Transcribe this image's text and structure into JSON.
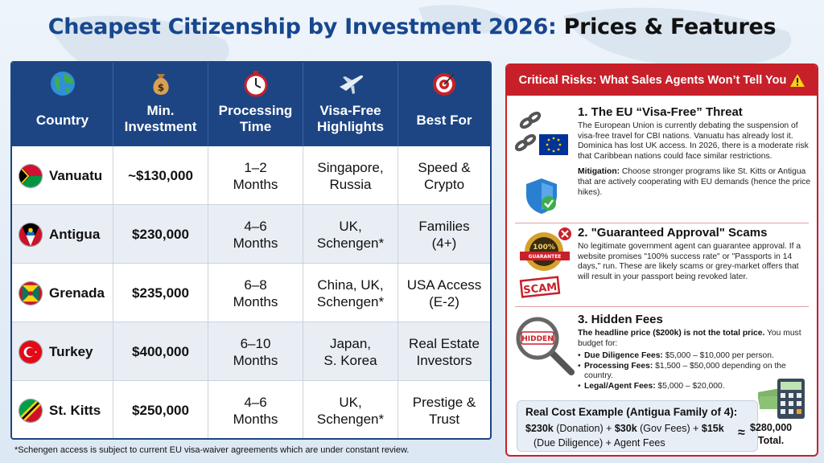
{
  "title": {
    "part1": "Cheapest Citizenship by Investment 2026:",
    "part2": "Prices & Features"
  },
  "table": {
    "headers": [
      {
        "label": "Country",
        "icon": "globe-icon"
      },
      {
        "label": "Min.\nInvestment",
        "icon": "money-bag-icon"
      },
      {
        "label": "Processing\nTime",
        "icon": "stopwatch-icon"
      },
      {
        "label": "Visa-Free\nHighlights",
        "icon": "airplane-icon"
      },
      {
        "label": "Best For",
        "icon": "target-icon"
      }
    ],
    "rows": [
      {
        "country": "Vanuatu",
        "flag": "vanuatu-flag",
        "investment": "~$130,000",
        "time": "1–2\nMonths",
        "visa": "Singapore,\nRussia",
        "best": "Speed &\nCrypto"
      },
      {
        "country": "Antigua",
        "flag": "antigua-flag",
        "investment": "$230,000",
        "time": "4–6\nMonths",
        "visa": "UK,\nSchengen*",
        "best": "Families\n(4+)"
      },
      {
        "country": "Grenada",
        "flag": "grenada-flag",
        "investment": "$235,000",
        "time": "6–8\nMonths",
        "visa": "China, UK,\nSchengen*",
        "best": "USA Access\n(E-2)"
      },
      {
        "country": "Turkey",
        "flag": "turkey-flag",
        "investment": "$400,000",
        "time": "6–10\nMonths",
        "visa": "Japan,\nS. Korea",
        "best": "Real Estate\nInvestors"
      },
      {
        "country": "St. Kitts",
        "flag": "st-kitts-flag",
        "investment": "$250,000",
        "time": "4–6\nMonths",
        "visa": "UK,\nSchengen*",
        "best": "Prestige &\nTrust"
      }
    ],
    "footnote": "*Schengen access is subject to current EU visa-waiver agreements which are under constant review."
  },
  "panel": {
    "heading": "Critical Risks: What Sales Agents Won’t Tell You",
    "risks": [
      {
        "title": "1. The EU “Visa-Free” Threat",
        "body": "The European Union is currently debating the suspension of visa-free travel for CBI nations. Vanuatu has already lost it. Dominica has lost UK access. In 2026, there is a moderate risk that Caribbean nations could face similar restrictions.",
        "mitigation_label": "Mitigation:",
        "mitigation": "Choose stronger programs like St. Kitts or Antigua that are actively cooperating with EU demands (hence the price hikes)."
      },
      {
        "title": "2. \"Guaranteed Approval\" Scams",
        "body": "No legitimate government agent can guarantee approval. If a website promises \"100% success rate\" or \"Passports in 14 days,\" run. These are likely scams or grey-market offers that will result in your passport being revoked later.",
        "badge_text": "100% GUARANTEE",
        "stamp_text": "SCAM"
      },
      {
        "title": "3. Hidden Fees",
        "lead_bold": "The headline price ($200k) is not the total price.",
        "lead_rest": " You must budget for:",
        "magnifier_text": "HIDDEN",
        "fees": [
          {
            "label": "Due Diligence Fees:",
            "value": " $5,000 – $10,000 per person."
          },
          {
            "label": "Processing Fees:",
            "value": " $1,500 – $50,000 depending on the country."
          },
          {
            "label": "Legal/Agent Fees:",
            "value": " $5,000 – $20,000."
          }
        ]
      }
    ],
    "cost": {
      "title": "Real Cost Example (Antigua Family of 4):",
      "a_amount": "$230k",
      "a_note": " (Donation) + ",
      "b_amount": "$30k",
      "b_note": " (Gov Fees) + ",
      "c_amount": "$15k",
      "line2": "(Due Diligence)          + Agent Fees",
      "approx": "≈",
      "total_amount": "$280,000",
      "total_label": "Total."
    }
  },
  "colors": {
    "navy": "#1d4583",
    "red": "#c8202a",
    "title_blue": "#16478f"
  }
}
